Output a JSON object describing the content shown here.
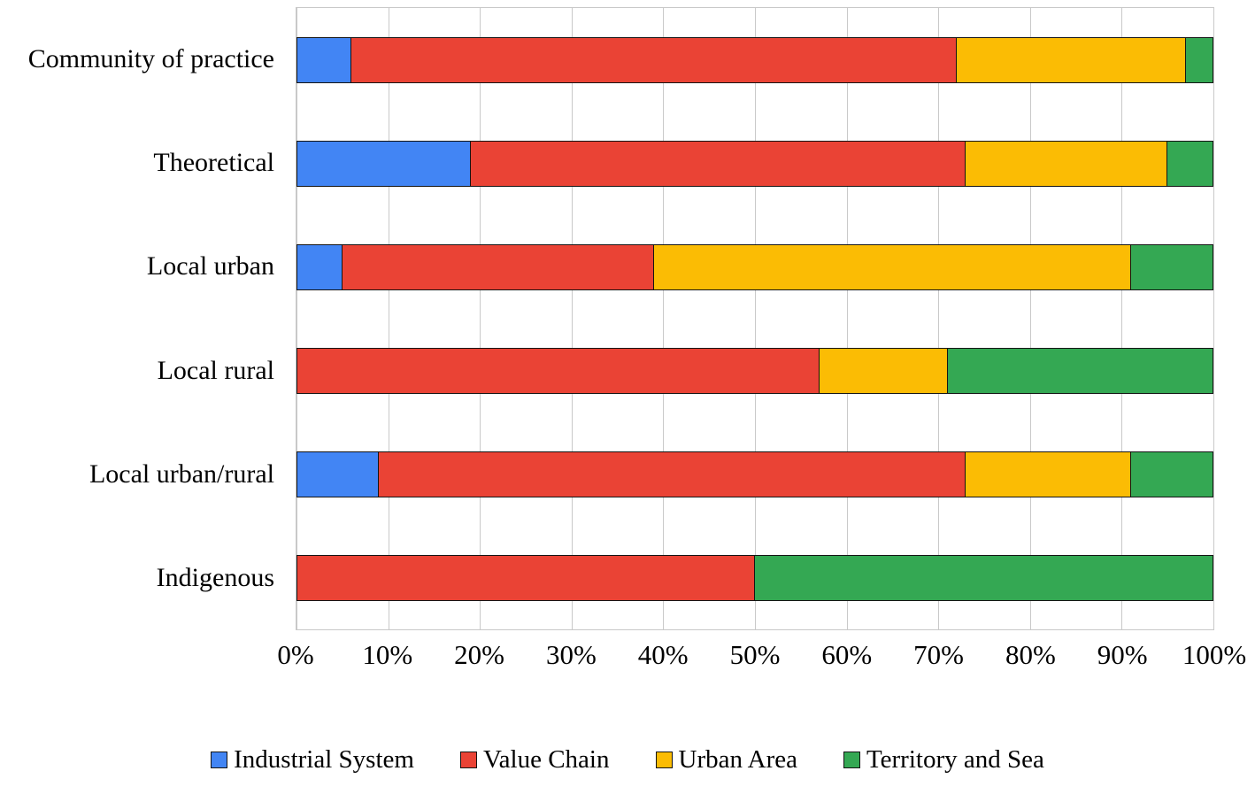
{
  "chart_data": {
    "type": "bar",
    "orientation": "horizontal",
    "stacked": true,
    "title": "",
    "xlabel": "",
    "ylabel": "",
    "xlim": [
      0,
      100
    ],
    "grid": "vertical",
    "legend_position": "bottom",
    "x_ticks": [
      "0%",
      "10%",
      "20%",
      "30%",
      "40%",
      "50%",
      "60%",
      "70%",
      "80%",
      "90%",
      "100%"
    ],
    "categories": [
      "Community of practice",
      "Theoretical",
      "Local urban",
      "Local rural",
      "Local urban/rural",
      "Indigenous"
    ],
    "series": [
      {
        "name": "Industrial System",
        "color": "#4285F4",
        "values": [
          6,
          19,
          5,
          0,
          9,
          0
        ]
      },
      {
        "name": "Value Chain",
        "color": "#EA4335",
        "values": [
          66,
          54,
          34,
          57,
          64,
          50
        ]
      },
      {
        "name": "Urban Area",
        "color": "#FBBC04",
        "values": [
          25,
          22,
          52,
          14,
          18,
          0
        ]
      },
      {
        "name": "Territory and Sea",
        "color": "#34A853",
        "values": [
          3,
          5,
          9,
          29,
          9,
          50
        ]
      }
    ]
  },
  "colors": {
    "gridline": "#c9c9c9",
    "bar_border": "#141414",
    "background": "#ffffff"
  }
}
